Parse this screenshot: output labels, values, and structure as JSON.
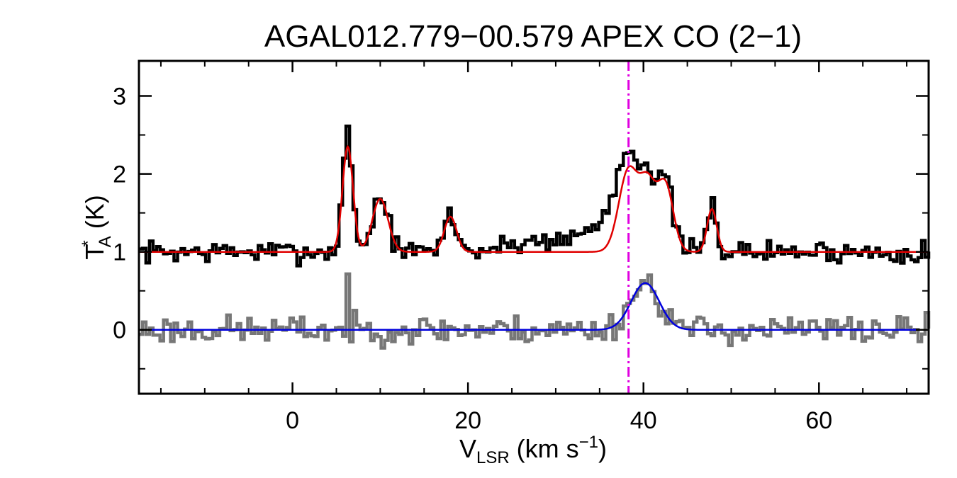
{
  "chart_data": {
    "type": "line",
    "title": "AGAL012.779−00.579  APEX CO (2−1)",
    "xlabel": {
      "main": "V",
      "sub": "LSR",
      "units": " (km s",
      "sup": "−1",
      "close": ")"
    },
    "ylabel": {
      "main": "T",
      "sup": "*",
      "sub": "A",
      "units": " (K)"
    },
    "xlim": [
      -17.5,
      72.5
    ],
    "ylim": [
      -0.82,
      3.45
    ],
    "xticks_major": [
      0,
      20,
      40,
      60
    ],
    "xtick_labels": [
      "0",
      "20",
      "40",
      "60"
    ],
    "xticks_minor": [
      -15,
      -10,
      -5,
      5,
      10,
      15,
      25,
      30,
      35,
      45,
      50,
      55,
      65,
      70
    ],
    "yticks_major": [
      0,
      1,
      2,
      3
    ],
    "ytick_labels": [
      "0",
      "1",
      "2",
      "3"
    ],
    "yticks_minor": [
      -0.5,
      0.5,
      1.5,
      2.5
    ],
    "vline": {
      "x": 38.3,
      "style": "dash-dot",
      "color": "#e000e0"
    },
    "colors": {
      "observed": "#000000",
      "fit": "#e00000",
      "residual": "#777777",
      "residual_fit": "#0000dd",
      "vline": "#e000e0"
    },
    "series": [
      {
        "name": "observed spectrum",
        "style": "histogram",
        "color": "#000000",
        "baseline": 1.0,
        "noise": 0.07,
        "seed": 7,
        "components": [
          {
            "center": 6.3,
            "amp": 1.55,
            "sigma": 0.55
          },
          {
            "center": 10.0,
            "amp": 0.7,
            "sigma": 0.9
          },
          {
            "center": 18.0,
            "amp": 0.48,
            "sigma": 0.7
          },
          {
            "center": 38.3,
            "amp": 1.05,
            "sigma": 1.3
          },
          {
            "center": 40.5,
            "amp": 0.7,
            "sigma": 0.9
          },
          {
            "center": 42.5,
            "amp": 0.85,
            "sigma": 0.9
          },
          {
            "center": 36.0,
            "amp": 0.35,
            "sigma": 2.5
          },
          {
            "center": 28.5,
            "amp": 0.15,
            "sigma": 3.5
          },
          {
            "center": 47.8,
            "amp": 0.58,
            "sigma": 0.55
          }
        ]
      },
      {
        "name": "gaussian fit",
        "style": "line",
        "color": "#e00000",
        "baseline": 1.0,
        "components": [
          {
            "center": 6.3,
            "amp": 1.35,
            "sigma": 0.6
          },
          {
            "center": 10.0,
            "amp": 0.68,
            "sigma": 0.9
          },
          {
            "center": 18.0,
            "amp": 0.45,
            "sigma": 0.7
          },
          {
            "center": 38.3,
            "amp": 1.05,
            "sigma": 1.1
          },
          {
            "center": 40.5,
            "amp": 0.8,
            "sigma": 0.9
          },
          {
            "center": 42.5,
            "amp": 0.85,
            "sigma": 0.9
          },
          {
            "center": 47.8,
            "amp": 0.55,
            "sigma": 0.55
          }
        ]
      },
      {
        "name": "residual / second spectrum",
        "style": "histogram",
        "color": "#777777",
        "baseline": 0.0,
        "noise": 0.09,
        "seed": 23,
        "components": [
          {
            "center": 40.2,
            "amp": 0.6,
            "sigma": 1.7
          },
          {
            "center": 6.3,
            "amp": 0.62,
            "sigma": 0.12
          }
        ]
      },
      {
        "name": "residual fit",
        "style": "line",
        "color": "#0000dd",
        "baseline": 0.0,
        "components": [
          {
            "center": 40.2,
            "amp": 0.6,
            "sigma": 1.6
          }
        ]
      }
    ],
    "channel_width": 0.4
  }
}
